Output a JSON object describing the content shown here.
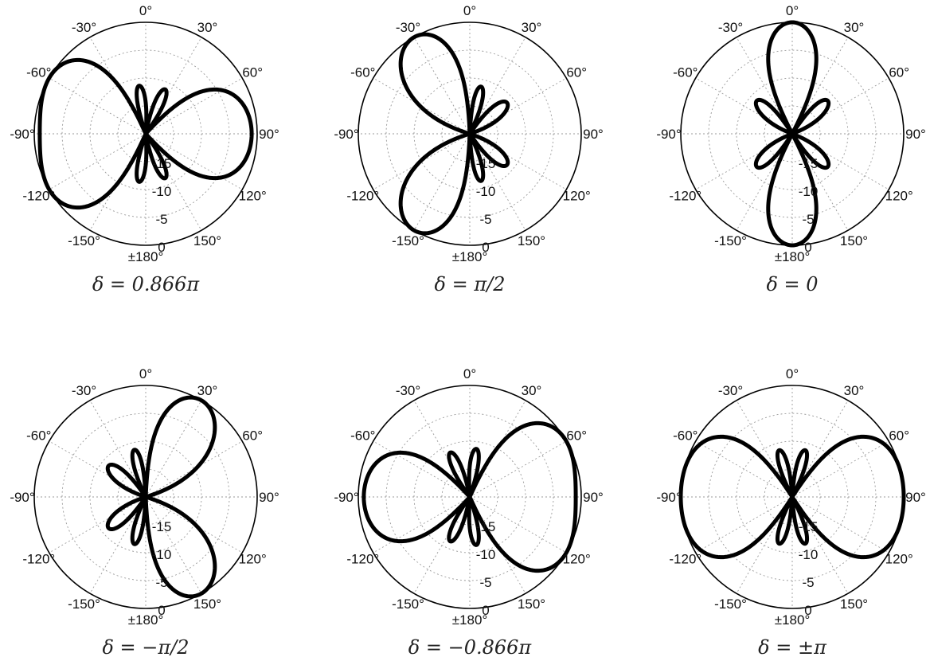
{
  "chart_data": [
    {
      "type": "polar",
      "caption": "δ = 0.866π",
      "delta_over_pi": 0.866,
      "angle_tick_labels": [
        "0°",
        "30°",
        "60°",
        "90°",
        "120°",
        "150°",
        "±180°",
        "-150°",
        "-120°",
        "-90°",
        "-60°",
        "-30°"
      ],
      "radial_tick_labels": [
        "-15",
        "-10",
        "-5",
        "0"
      ],
      "radial_range_db": [
        -20,
        0
      ],
      "grid": true,
      "series": [
        {
          "theta_deg": [
            -115,
            -100,
            -90,
            -80,
            -65,
            -60,
            -50,
            -30,
            0,
            30,
            50,
            60,
            70,
            85,
            90,
            95,
            110,
            120,
            180
          ],
          "r_db": [
            -1,
            -0.4,
            -0.2,
            -0.4,
            -1,
            -3,
            -8,
            -13,
            -20,
            -13,
            -8,
            -3,
            -2,
            -2.5,
            -3,
            -2.5,
            -2,
            -3,
            -20
          ]
        }
      ]
    },
    {
      "type": "polar",
      "caption": "δ = π/2",
      "delta_over_pi": 0.5,
      "angle_tick_labels": [
        "0°",
        "30°",
        "60°",
        "90°",
        "120°",
        "150°",
        "±180°",
        "-150°",
        "-120°",
        "-90°",
        "-60°",
        "-30°"
      ],
      "radial_tick_labels": [
        "-15",
        "-10",
        "-5",
        "0"
      ],
      "radial_range_db": [
        -20,
        0
      ],
      "grid": true,
      "series": [
        {
          "theta_deg": [
            -150,
            -30,
            90
          ],
          "r_db": [
            0,
            0,
            -12
          ]
        }
      ]
    },
    {
      "type": "polar",
      "caption": "δ = 0",
      "delta_over_pi": 0,
      "angle_tick_labels": [
        "0°",
        "30°",
        "60°",
        "90°",
        "120°",
        "150°",
        "±180°",
        "-150°",
        "-120°",
        "-90°",
        "-60°",
        "-30°"
      ],
      "radial_tick_labels": [
        "-15",
        "-10",
        "-5",
        "0"
      ],
      "radial_range_db": [
        -20,
        0
      ],
      "grid": true,
      "series": [
        {
          "theta_deg": [
            0,
            90,
            180,
            -90
          ],
          "r_db": [
            0,
            -15,
            0,
            -15
          ]
        }
      ]
    },
    {
      "type": "polar",
      "caption": "δ = −π/2",
      "delta_over_pi": -0.5,
      "angle_tick_labels": [
        "0°",
        "30°",
        "60°",
        "90°",
        "120°",
        "150°",
        "±180°",
        "-150°",
        "-120°",
        "-90°",
        "-60°",
        "-30°"
      ],
      "radial_tick_labels": [
        "-15",
        "-10",
        "-5",
        "0"
      ],
      "radial_range_db": [
        -20,
        0
      ],
      "grid": true,
      "series": [
        {
          "theta_deg": [
            30,
            150,
            -90
          ],
          "r_db": [
            0,
            0,
            -12
          ]
        }
      ]
    },
    {
      "type": "polar",
      "caption": "δ = −0.866π",
      "delta_over_pi": -0.866,
      "angle_tick_labels": [
        "0°",
        "30°",
        "60°",
        "90°",
        "120°",
        "150°",
        "±180°",
        "-150°",
        "-120°",
        "-90°",
        "-60°",
        "-30°"
      ],
      "radial_tick_labels": [
        "-15",
        "-10",
        "-5",
        "0"
      ],
      "radial_range_db": [
        -20,
        0
      ],
      "grid": true,
      "series": [
        {
          "theta_deg": [
            60,
            90,
            120,
            -90
          ],
          "r_db": [
            -0.5,
            -0.2,
            -0.5,
            -3
          ]
        }
      ]
    },
    {
      "type": "polar",
      "caption": "δ = ±π",
      "delta_over_pi": 1,
      "angle_tick_labels": [
        "0°",
        "30°",
        "60°",
        "90°",
        "120°",
        "150°",
        "±180°",
        "-150°",
        "-120°",
        "-90°",
        "-60°",
        "-30°"
      ],
      "radial_tick_labels": [
        "-15",
        "-10",
        "-5",
        "0"
      ],
      "radial_range_db": [
        -20,
        0
      ],
      "grid": true,
      "series": [
        {
          "theta_deg": [
            90,
            -90
          ],
          "r_db": [
            0,
            0
          ]
        }
      ]
    }
  ]
}
